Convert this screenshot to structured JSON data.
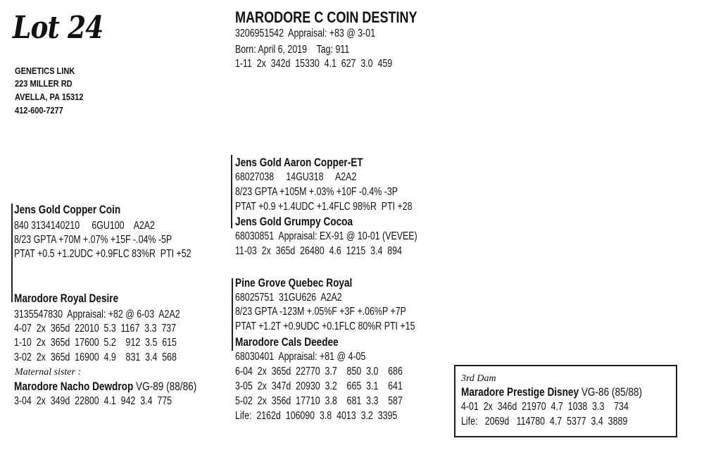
{
  "lot": "Lot 24",
  "consignor": {
    "name": "GENETICS LINK",
    "street": "223 MILLER RD",
    "city": "AVELLA, PA 15312",
    "phone": "412-600-7277"
  },
  "subject": {
    "name": "MARODORE C COIN DESTINY",
    "id_line": "3206951542  Appraisal: +83 @ 3-01",
    "born_line": "Born: April 6, 2019    Tag: 911",
    "record": "1-11  2x  342d  15330  4.1  627  3.0  459"
  },
  "sire": {
    "name": "Jens Gold Copper Coin",
    "id_line": "840 3134140210     6GU100    A2A2",
    "gpta": "8/23 GPTA +70M +.07% +15F -.04% -5P",
    "ptat": "PTAT +0.5 +1.2UDC +0.9FLC 83%R  PTI +52"
  },
  "sires_sire": {
    "name": "Jens Gold Aaron Copper-ET",
    "id_line": "68027038     14GU318     A2A2",
    "gpta": "8/23 GPTA +105M +.03% +10F -0.4% -3P",
    "ptat": "PTAT +0.9 +1.4UDC +1.4FLC 98%R  PTI +28"
  },
  "sires_dam": {
    "name": "Jens Gold Grumpy Cocoa",
    "id_line": "68030851  Appraisal: EX-91 @ 10-01 (VEVEE)",
    "record": "11-03  2x  365d  26480  4.6  1215  3.4  894"
  },
  "dam": {
    "name": "Marodore Royal Desire",
    "id_line": "3135547830  Appraisal: +82 @ 6-03  A2A2",
    "records": [
      "4-07  2x  365d  22010  5.3  1167  3.3  737",
      "1-10  2x  365d  17600  5.2    912  3.5  615",
      "3-02  2x  365d  16900  4.9    831  3.4  568"
    ],
    "sister_label": "Maternal sister :",
    "sister_name": "Marodore Nacho Dewdrop",
    "sister_score": " VG-89 (88/86)",
    "sister_record": "3-04  2x  349d  22800  4.1  942  3.4  775"
  },
  "dams_sire": {
    "name": "Pine Grove Quebec Royal",
    "id_line": "68025751  31GU626  A2A2",
    "gpta": "8/23 GPTA -123M +.05%F +3F +.06%P +7P",
    "ptat": "PTAT +1.2T +0.9UDC +0.1FLC 80%R PTI +15"
  },
  "dams_dam": {
    "name": "Marodore Cals Deedee",
    "id_line": "68030401  Appraisal: +81 @ 4-05",
    "records": [
      "6-04  2x  365d  22770  3.7    850  3.0    686",
      "3-05  2x  347d  20930  3.2    665  3.1    641",
      "5-02  2x  356d  17710  3.8    681  3.3    587",
      "Life:  2162d  106090  3.8  4013  3.2  3395"
    ]
  },
  "third_dam": {
    "label": "3rd Dam",
    "name": "Maradore Prestige Disney",
    "score": " VG-86 (85/88)",
    "records": [
      "4-01  2x  346d  21970  4.7  1038  3.3    734",
      "Life:   2069d   114780  4.7  5377  3.4  3889"
    ]
  }
}
